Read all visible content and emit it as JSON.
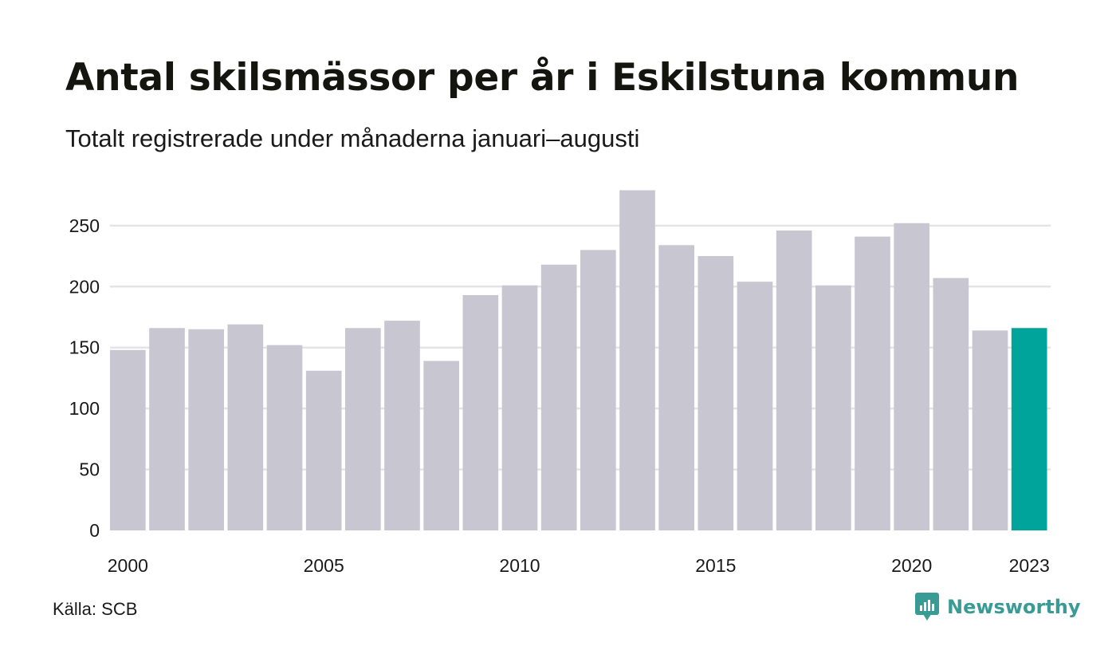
{
  "header": {
    "title": "Antal skilsmässor per år i Eskilstuna kommun",
    "subtitle": "Totalt registrerade under månaderna januari–augusti"
  },
  "footer": {
    "source": "Källa: SCB",
    "brand": "Newsworthy",
    "brand_icon": "newsworthy-logo-icon"
  },
  "colors": {
    "bar": "#c8c7d1",
    "highlight": "#00a49a",
    "grid": "#e4e4e8",
    "brand": "#3a9a94"
  },
  "chart_data": {
    "type": "bar",
    "categories": [
      "2000",
      "2001",
      "2002",
      "2003",
      "2004",
      "2005",
      "2006",
      "2007",
      "2008",
      "2009",
      "2010",
      "2011",
      "2012",
      "2013",
      "2014",
      "2015",
      "2016",
      "2017",
      "2018",
      "2019",
      "2020",
      "2021",
      "2022",
      "2023"
    ],
    "values": [
      148,
      166,
      165,
      169,
      152,
      131,
      166,
      172,
      139,
      193,
      201,
      218,
      230,
      279,
      234,
      225,
      204,
      246,
      201,
      241,
      252,
      207,
      164,
      166
    ],
    "highlight_category": "2023",
    "x_tick_labels": [
      "2000",
      "2005",
      "2010",
      "2015",
      "2020",
      "2023"
    ],
    "y_ticks": [
      0,
      50,
      100,
      150,
      200,
      250
    ],
    "ylim": [
      0,
      280
    ],
    "grid": true,
    "xlabel": "",
    "ylabel": ""
  }
}
